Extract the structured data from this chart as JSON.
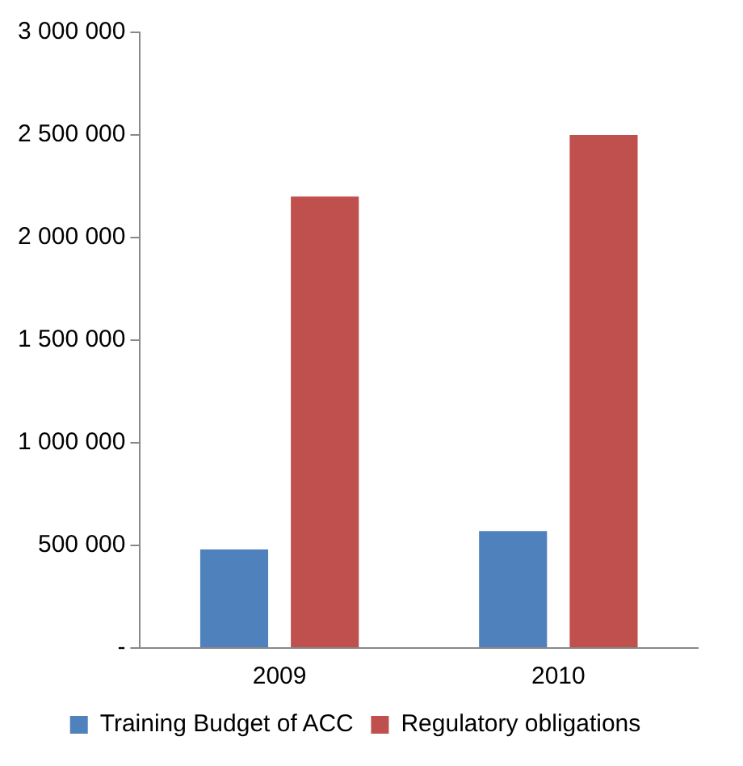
{
  "chart_data": {
    "type": "bar",
    "categories": [
      "2009",
      "2010"
    ],
    "series": [
      {
        "name": "Training Budget of ACC",
        "color": "#4f81bd",
        "values": [
          480000,
          570000
        ]
      },
      {
        "name": "Regulatory obligations",
        "color": "#c0504d",
        "values": [
          2200000,
          2500000
        ]
      }
    ],
    "ylim": [
      0,
      3000000
    ],
    "yticks": [
      {
        "value": 0,
        "label": "-"
      },
      {
        "value": 500000,
        "label": "500 000"
      },
      {
        "value": 1000000,
        "label": "1 000 000"
      },
      {
        "value": 1500000,
        "label": "1 500 000"
      },
      {
        "value": 2000000,
        "label": "2 000 000"
      },
      {
        "value": 2500000,
        "label": "2 500 000"
      },
      {
        "value": 3000000,
        "label": "3 000 000"
      }
    ],
    "grid": false,
    "legend": "bottom"
  }
}
